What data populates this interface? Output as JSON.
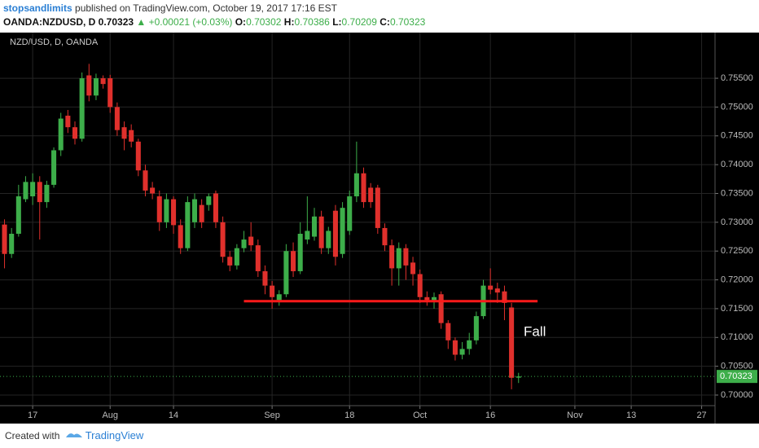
{
  "header": {
    "author": "stopsandlimits",
    "published": "published on TradingView.com, October 19, 2017 17:16 EST",
    "symbol": "OANDA:NZDUSD, D",
    "price": "0.70323",
    "change": "▲ +0.00021 (+0.03%)",
    "o_label": "O:",
    "o_value": "0.70302",
    "h_label": "H:",
    "h_value": "0.70386",
    "l_label": "L:",
    "l_value": "0.70209",
    "c_label": "C:",
    "c_value": "0.70323"
  },
  "footer": {
    "created": "Created with",
    "brand": "TradingView"
  },
  "chart_data": {
    "type": "candlestick",
    "title": "NZD/USD, D, OANDA",
    "up_color": "#3dae4a",
    "down_color": "#e0302c",
    "grid": true,
    "open": [
      0.7296,
      0.7245,
      0.728,
      0.734,
      0.7345,
      0.737,
      0.7335,
      0.7365,
      0.7425,
      0.7485,
      0.7465,
      0.7445,
      0.7555,
      0.752,
      0.755,
      0.755,
      0.75,
      0.7465,
      0.746,
      0.744,
      0.739,
      0.736,
      0.7345,
      0.73,
      0.734,
      0.7295,
      0.7255,
      0.73,
      0.733,
      0.733,
      0.735,
      0.73,
      0.724,
      0.7225,
      0.7255,
      0.7275,
      0.726,
      0.7215,
      0.719,
      0.7165,
      0.7175,
      0.725,
      0.7215,
      0.727,
      0.7275,
      0.731,
      0.7255,
      0.732,
      0.7245,
      0.7285,
      0.7345,
      0.7385,
      0.736,
      0.736,
      0.729,
      0.726,
      0.722,
      0.7255,
      0.723,
      0.721,
      0.717,
      0.7165,
      0.7175,
      0.7125,
      0.7095,
      0.707,
      0.708,
      0.7095,
      0.7137,
      0.719,
      0.7185,
      0.718,
      0.7152,
      0.70302
    ],
    "high": [
      0.7305,
      0.729,
      0.7365,
      0.738,
      0.7385,
      0.738,
      0.7372,
      0.743,
      0.749,
      0.7495,
      0.7475,
      0.756,
      0.7575,
      0.7558,
      0.7555,
      0.7556,
      0.7508,
      0.7475,
      0.747,
      0.7445,
      0.74,
      0.737,
      0.7355,
      0.735,
      0.7345,
      0.7305,
      0.7345,
      0.735,
      0.734,
      0.735,
      0.7355,
      0.731,
      0.725,
      0.7262,
      0.7285,
      0.73,
      0.727,
      0.7225,
      0.7198,
      0.7182,
      0.7262,
      0.7265,
      0.73,
      0.7345,
      0.7325,
      0.732,
      0.7292,
      0.733,
      0.7335,
      0.7355,
      0.744,
      0.7395,
      0.7368,
      0.7365,
      0.7298,
      0.727,
      0.7265,
      0.7262,
      0.724,
      0.7218,
      0.718,
      0.7178,
      0.718,
      0.713,
      0.71,
      0.7092,
      0.7108,
      0.7145,
      0.72,
      0.722,
      0.7195,
      0.719,
      0.716,
      0.70386
    ],
    "low": [
      0.722,
      0.7238,
      0.7275,
      0.7335,
      0.733,
      0.727,
      0.7325,
      0.736,
      0.7415,
      0.7455,
      0.7435,
      0.744,
      0.751,
      0.7512,
      0.7532,
      0.749,
      0.745,
      0.7425,
      0.743,
      0.738,
      0.7345,
      0.734,
      0.7285,
      0.729,
      0.728,
      0.7245,
      0.725,
      0.729,
      0.729,
      0.732,
      0.729,
      0.723,
      0.7215,
      0.7218,
      0.7248,
      0.725,
      0.7205,
      0.7175,
      0.715,
      0.7155,
      0.717,
      0.7205,
      0.721,
      0.7262,
      0.7268,
      0.7245,
      0.7245,
      0.7225,
      0.7238,
      0.7278,
      0.7335,
      0.7325,
      0.7325,
      0.728,
      0.725,
      0.719,
      0.719,
      0.72,
      0.719,
      0.716,
      0.7155,
      0.715,
      0.7115,
      0.708,
      0.706,
      0.7062,
      0.707,
      0.7088,
      0.7132,
      0.7175,
      0.716,
      0.713,
      0.701,
      0.70209
    ],
    "close": [
      0.7245,
      0.728,
      0.7345,
      0.737,
      0.737,
      0.7335,
      0.7365,
      0.7425,
      0.748,
      0.7465,
      0.7445,
      0.755,
      0.752,
      0.755,
      0.754,
      0.75,
      0.746,
      0.7445,
      0.744,
      0.739,
      0.7355,
      0.735,
      0.73,
      0.734,
      0.7295,
      0.7255,
      0.7335,
      0.734,
      0.73,
      0.7345,
      0.73,
      0.724,
      0.7225,
      0.7255,
      0.727,
      0.726,
      0.7215,
      0.719,
      0.717,
      0.7175,
      0.725,
      0.7215,
      0.728,
      0.7285,
      0.731,
      0.7255,
      0.7285,
      0.724,
      0.7325,
      0.7345,
      0.7385,
      0.7335,
      0.7335,
      0.729,
      0.726,
      0.722,
      0.7255,
      0.7225,
      0.721,
      0.717,
      0.7165,
      0.717,
      0.7125,
      0.7095,
      0.707,
      0.708,
      0.7095,
      0.7137,
      0.719,
      0.7183,
      0.7178,
      0.716,
      0.703,
      0.70323
    ],
    "xlim": [
      -0.64,
      100.9
    ],
    "xticks": [
      {
        "value": 4,
        "label": "17"
      },
      {
        "value": 15,
        "label": "Aug"
      },
      {
        "value": 24,
        "label": "14"
      },
      {
        "value": 38,
        "label": "Sep"
      },
      {
        "value": 49,
        "label": "18"
      },
      {
        "value": 59,
        "label": "Oct"
      },
      {
        "value": 69,
        "label": "16"
      },
      {
        "value": 81,
        "label": "Nov"
      },
      {
        "value": 89,
        "label": "13"
      },
      {
        "value": 99,
        "label": "27"
      }
    ],
    "ylim": [
      0.69816,
      0.76293
    ],
    "yticks": [
      {
        "value": 0.7,
        "label": "0.70000"
      },
      {
        "value": 0.705,
        "label": "0.70500"
      },
      {
        "value": 0.71,
        "label": "0.71000"
      },
      {
        "value": 0.715,
        "label": "0.71500"
      },
      {
        "value": 0.72,
        "label": "0.72000"
      },
      {
        "value": 0.725,
        "label": "0.72500"
      },
      {
        "value": 0.73,
        "label": "0.73000"
      },
      {
        "value": 0.735,
        "label": "0.73500"
      },
      {
        "value": 0.74,
        "label": "0.74000"
      },
      {
        "value": 0.745,
        "label": "0.74500"
      },
      {
        "value": 0.75,
        "label": "0.75000"
      },
      {
        "value": 0.755,
        "label": "0.75500"
      }
    ],
    "last_price": {
      "value": 0.70323,
      "label": "0.70323"
    },
    "support_line": {
      "value": 0.7163,
      "from": 34,
      "to": 75.7,
      "color": "#ff1a1a"
    },
    "annotation": "Fall"
  }
}
